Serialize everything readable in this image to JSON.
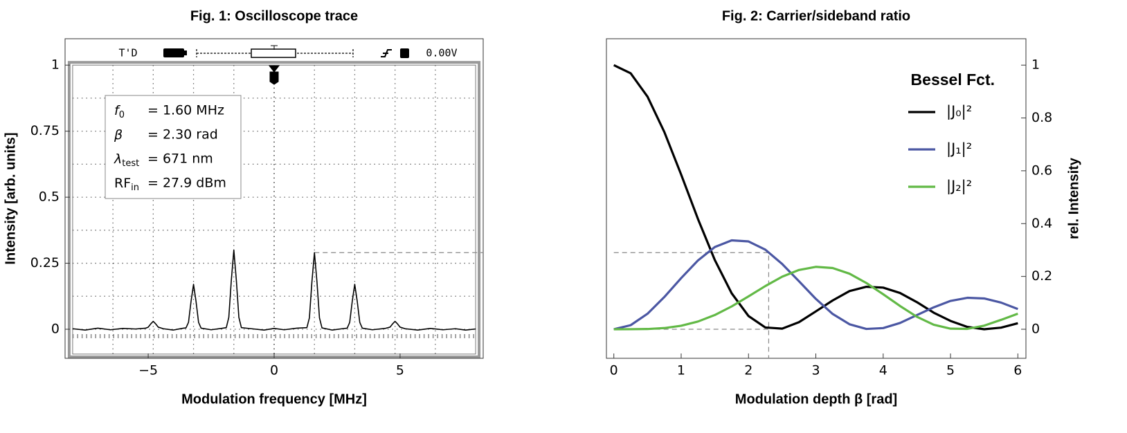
{
  "chart_data": [
    {
      "type": "line",
      "title": "Fig. 1: Oscilloscope trace",
      "x_label": "Modulation frequency [MHz]",
      "y_label": "Intensity [arb. units]",
      "xlim": [
        -8.3,
        8.3
      ],
      "ylim": [
        -0.11,
        1.1
      ],
      "xticks": [
        {
          "value": -5,
          "label": "−5"
        },
        0,
        5
      ],
      "yticks": [
        0,
        0.25,
        0.5,
        0.75,
        1
      ],
      "yaxis_side": "left",
      "scope": {
        "header_left": "T'D",
        "header_right": "0.00V",
        "screen_xlim": [
          -8,
          8
        ],
        "screen_ylim": [
          -0.094,
          1
        ]
      },
      "reference": {
        "x": 1.6,
        "y": 0.29
      },
      "annotations": [
        {
          "symbol": "f",
          "subscript": "0",
          "text": "= 1.60 MHz"
        },
        {
          "symbol": "β",
          "text": "= 2.30 rad"
        },
        {
          "symbol": "λ",
          "subscript": "test",
          "text": "= 671 nm"
        },
        {
          "symbol": "RF",
          "subscript": "in",
          "text": "= 27.9 dBm"
        }
      ],
      "x": [
        -8,
        -7.5,
        -7,
        -6.5,
        -6,
        -5.5,
        -5.1,
        -5.0,
        -4.9,
        -4.8,
        -4.7,
        -4.6,
        -4.4,
        -4.0,
        -3.6,
        -3.5,
        -3.4,
        -3.3,
        -3.2,
        -3.1,
        -3.0,
        -2.9,
        -2.5,
        -2.1,
        -1.9,
        -1.8,
        -1.7,
        -1.6,
        -1.5,
        -1.4,
        -1.3,
        -0.9,
        -0.4,
        0,
        0.4,
        0.9,
        1.3,
        1.4,
        1.5,
        1.6,
        1.7,
        1.8,
        1.9,
        2.3,
        2.7,
        2.9,
        3.0,
        3.1,
        3.2,
        3.3,
        3.4,
        3.5,
        3.9,
        4.4,
        4.6,
        4.7,
        4.8,
        4.9,
        5.0,
        5.2,
        5.7,
        6.2,
        6.7,
        7.2,
        7.6,
        8
      ],
      "series": [
        {
          "color": "#000000",
          "values": [
            0.002,
            -0.003,
            0.004,
            -0.002,
            0.003,
            0.001,
            0.004,
            0.008,
            0.02,
            0.03,
            0.02,
            0.008,
            0.002,
            -0.003,
            0.004,
            0.005,
            0.026,
            0.105,
            0.17,
            0.105,
            0.026,
            0.004,
            -0.002,
            0.003,
            0.006,
            0.045,
            0.185,
            0.3,
            0.185,
            0.045,
            0.006,
            0.002,
            -0.003,
            0.003,
            -0.002,
            0.004,
            0.006,
            0.043,
            0.18,
            0.29,
            0.18,
            0.043,
            0.005,
            -0.003,
            0.002,
            0.004,
            0.026,
            0.105,
            0.17,
            0.105,
            0.026,
            0.004,
            -0.002,
            0.003,
            0.008,
            0.02,
            0.03,
            0.02,
            0.008,
            0.002,
            -0.003,
            0.003,
            -0.002,
            0.002,
            -0.003,
            0.001
          ]
        }
      ]
    },
    {
      "type": "line",
      "title": "Fig. 2: Carrier/sideband ratio",
      "x_label": "Modulation depth β [rad]",
      "y_label": "rel. Intensity",
      "xlim": [
        -0.11,
        6.12
      ],
      "ylim": [
        -0.11,
        1.1
      ],
      "xticks": [
        0,
        1,
        2,
        3,
        4,
        5,
        6
      ],
      "yticks": [
        0,
        0.2,
        0.4,
        0.6,
        0.8,
        1
      ],
      "yaxis_side": "right",
      "guide": {
        "x": 2.3,
        "y": 0.29
      },
      "legend_title": "Bessel Fct.",
      "legend": "upper right",
      "x": [
        0,
        0.25,
        0.5,
        0.75,
        1,
        1.25,
        1.5,
        1.75,
        2,
        2.25,
        2.5,
        2.75,
        3,
        3.25,
        3.5,
        3.75,
        4,
        4.25,
        4.5,
        4.75,
        5,
        5.25,
        5.5,
        5.75,
        6
      ],
      "series": [
        {
          "name": "|J₀|²",
          "color": "#000000",
          "values": [
            1,
            0.9691,
            0.8807,
            0.7469,
            0.5855,
            0.4172,
            0.262,
            0.1362,
            0.0501,
            0.0067,
            0.0023,
            0.0269,
            0.0676,
            0.109,
            0.1445,
            0.1608,
            0.1577,
            0.1374,
            0.1027,
            0.0628,
            0.0315,
            0.0088,
            0.0,
            0.0061,
            0.0227
          ]
        },
        {
          "name": "|J₁|²",
          "color": "#4b57a3",
          "values": [
            0,
            0.0154,
            0.0587,
            0.122,
            0.1936,
            0.2607,
            0.3113,
            0.3366,
            0.3326,
            0.3014,
            0.2471,
            0.1816,
            0.115,
            0.0579,
            0.0189,
            0.0011,
            0.0044,
            0.0238,
            0.0534,
            0.0829,
            0.1073,
            0.1191,
            0.1166,
            0.101,
            0.0766
          ]
        },
        {
          "name": "|J₂|²",
          "color": "#62b946",
          "values": [
            0,
            0.0001,
            0.0009,
            0.0045,
            0.0132,
            0.0293,
            0.0539,
            0.0864,
            0.1245,
            0.1635,
            0.199,
            0.2245,
            0.2363,
            0.2317,
            0.2103,
            0.1751,
            0.1326,
            0.0881,
            0.0473,
            0.0173,
            0.0022,
            0.0014,
            0.0137,
            0.0355,
            0.059
          ]
        }
      ]
    }
  ]
}
